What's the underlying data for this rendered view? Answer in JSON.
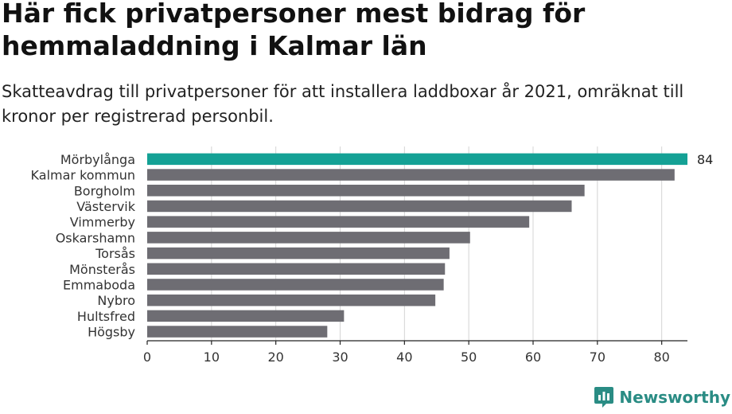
{
  "title": "Här fick privatpersoner mest bidrag för hemmaladdning i Kalmar län",
  "subtitle": "Skatteavdrag till privatpersoner för att installera laddboxar år 2021, omräknat till kronor per registrerad personbil.",
  "brand": {
    "name": "Newsworthy",
    "icon": "newsworthy-logo-icon",
    "color": "#2a8c84"
  },
  "colors": {
    "highlight": "#14a195",
    "bar": "#6e6d73",
    "grid": "#d4d4d4",
    "axis": "#222222"
  },
  "chart_data": {
    "type": "bar",
    "orientation": "horizontal",
    "categories": [
      "Mörbylånga",
      "Kalmar kommun",
      "Borgholm",
      "Västervik",
      "Vimmerby",
      "Oskarshamn",
      "Torsås",
      "Mönsterås",
      "Emmaboda",
      "Nybro",
      "Hultsfred",
      "Högsby"
    ],
    "values": [
      84,
      82,
      68,
      66,
      59.4,
      50.2,
      47,
      46.3,
      46.1,
      44.8,
      30.6,
      28
    ],
    "highlight_index": 0,
    "value_labels": [
      {
        "index": 0,
        "text": "84"
      }
    ],
    "xlim": [
      0,
      84
    ],
    "xticks": [
      0,
      10,
      20,
      30,
      40,
      50,
      60,
      70,
      80
    ],
    "grid": true,
    "xlabel": "",
    "ylabel": ""
  }
}
